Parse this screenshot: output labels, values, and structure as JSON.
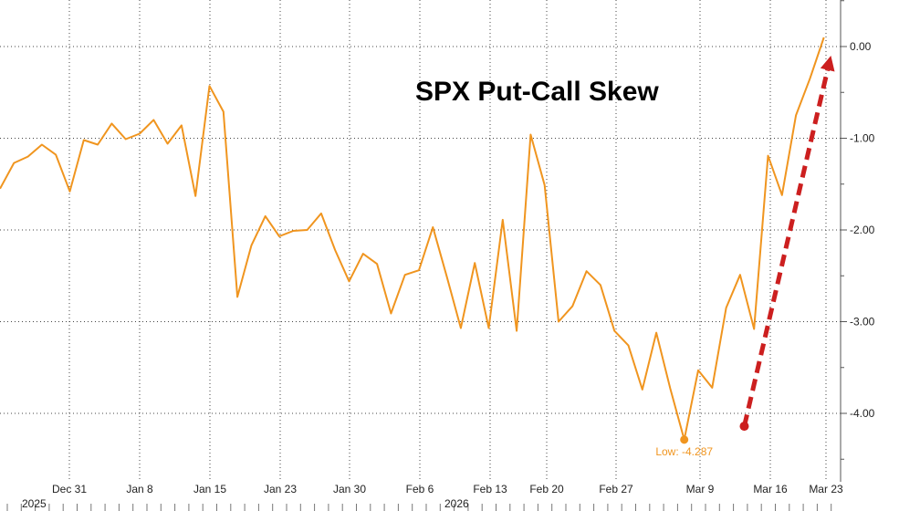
{
  "chart_data": {
    "type": "line",
    "title": "SPX Put-Call Skew",
    "xlabel": "",
    "ylabel": "",
    "x_tick_labels": [
      "Dec 31",
      "Jan 8",
      "Jan 15",
      "Jan 23",
      "Jan 30",
      "Feb 6",
      "Feb 13",
      "Feb 20",
      "Feb 27",
      "Mar 9",
      "Mar 16",
      "Mar 23"
    ],
    "year_labels": [
      "2025",
      "2026"
    ],
    "y_tick_labels": [
      "0.00",
      "-1.00",
      "-2.00",
      "-3.00",
      "-4.00"
    ],
    "y_ticks": [
      0,
      -1,
      -2,
      -3,
      -4
    ],
    "ylim": [
      -4.7,
      0.5
    ],
    "grid": true,
    "series": [
      {
        "color": "#f0951f",
        "values": [
          -1.55,
          -1.27,
          -1.2,
          -1.07,
          -1.18,
          -1.58,
          -1.02,
          -1.07,
          -0.84,
          -1.01,
          -0.95,
          -0.8,
          -1.06,
          -0.86,
          -1.63,
          -0.43,
          -0.71,
          -2.73,
          -2.17,
          -1.85,
          -2.07,
          -2.01,
          -2.0,
          -1.82,
          -2.22,
          -2.56,
          -2.26,
          -2.37,
          -2.91,
          -2.49,
          -2.44,
          -1.97,
          -2.51,
          -3.07,
          -2.36,
          -3.07,
          -1.89,
          -3.1,
          -0.96,
          -1.51,
          -3.0,
          -2.83,
          -2.45,
          -2.6,
          -3.1,
          -3.26,
          -3.74,
          -3.12,
          -3.73,
          -4.287,
          -3.53,
          -3.72,
          -2.85,
          -2.49,
          -3.08,
          -1.19,
          -1.62,
          -0.75,
          -0.35,
          0.1
        ]
      }
    ],
    "low_marker": {
      "label": "Low: -4.287",
      "value": -4.287,
      "index": 49
    },
    "trend_arrow": {
      "from_index": 53.3,
      "from_value": -4.14,
      "to_index": 59.5,
      "to_value": -0.1,
      "color": "#cc1f1f"
    }
  }
}
